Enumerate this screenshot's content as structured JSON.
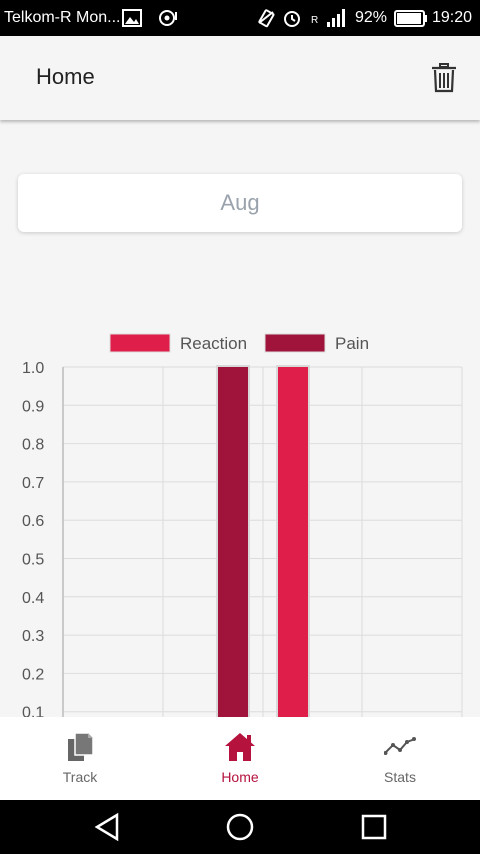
{
  "status_bar": {
    "carrier": "Telkom-R Mon...",
    "roaming": "R",
    "battery": "92%",
    "time": "19:20"
  },
  "app_bar": {
    "title": "Home",
    "delete_icon": "trash-icon"
  },
  "month_selector": {
    "value": "Aug"
  },
  "chart_data": {
    "type": "bar",
    "legend_position": "top",
    "grid": true,
    "ylim": [
      0,
      1.0
    ],
    "yticks": [
      "1.0",
      "0.9",
      "0.8",
      "0.7",
      "0.6",
      "0.5",
      "0.4",
      "0.3",
      "0.2",
      "0.1"
    ],
    "series": [
      {
        "name": "Reaction",
        "color": "#e01e4a",
        "values": [
          1.0
        ]
      },
      {
        "name": "Pain",
        "color": "#a0133a",
        "values": [
          1.0
        ]
      }
    ]
  },
  "bottom_nav": {
    "items": [
      {
        "label": "Track",
        "icon": "documents-icon",
        "active": false
      },
      {
        "label": "Home",
        "icon": "home-icon",
        "active": true
      },
      {
        "label": "Stats",
        "icon": "line-chart-icon",
        "active": false
      }
    ],
    "active_color": "#b5123d",
    "inactive_color": "#666666"
  }
}
